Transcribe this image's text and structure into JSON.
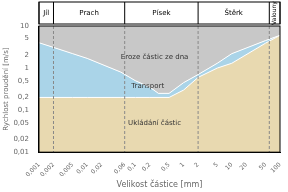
{
  "chart_data": {
    "type": "area",
    "log": true,
    "grid": false,
    "xlabel": "Velikost částice [mm]",
    "ylabel": "Rychlost proudění [m/s]",
    "xlim": [
      0.001,
      100
    ],
    "ylim": [
      0.01,
      10
    ],
    "xticks": [
      {
        "value": 0.001,
        "label": "0,001"
      },
      {
        "value": 0.002,
        "label": "0,002"
      },
      {
        "value": 0.005,
        "label": "0,005"
      },
      {
        "value": 0.01,
        "label": "0,01"
      },
      {
        "value": 0.02,
        "label": "0,02"
      },
      {
        "value": 0.06,
        "label": "0,06"
      },
      {
        "value": 0.1,
        "label": "0,1"
      },
      {
        "value": 0.2,
        "label": "0,2"
      },
      {
        "value": 0.5,
        "label": "0,5"
      },
      1,
      2,
      5,
      10,
      20,
      50,
      100
    ],
    "yticks": [
      {
        "value": 0.01,
        "label": "0,01"
      },
      {
        "value": 0.02,
        "label": "0,02"
      },
      {
        "value": 0.05,
        "label": "0,05"
      },
      {
        "value": 0.1,
        "label": "0,1"
      },
      {
        "value": 0.2,
        "label": "0,2"
      },
      {
        "value": 0.5,
        "label": "0,5"
      },
      1,
      2,
      5,
      10
    ],
    "curves": [
      {
        "x": [
          0.001,
          0.001999862,
          0.005000345,
          0.01,
          0.05000345,
          0.1,
          0.1999862,
          0.2999163,
          0.5000345,
          1,
          1.999862,
          5.000345,
          10,
          50.00345,
          100
        ],
        "values": [
          3.999447,
          3.097419,
          2.19786,
          1.698244,
          0.7998342,
          0.5000345,
          0.3499452,
          0.2500345,
          0.2500345,
          0.4497799,
          0.699842,
          1.30017,
          2.19786,
          4.497799,
          5.997911
        ]
      },
      {
        "x": [
          0.001,
          0.001999862,
          0.005000345,
          0.01,
          0.05000345,
          0.1,
          0.1999862,
          0.5000345,
          1,
          1.999862,
          5.000345,
          10,
          50.00345,
          100
        ],
        "values": [
          0.1999862,
          0.1999862,
          0.1999862,
          0.1999862,
          0.1999862,
          0.1999862,
          0.1999862,
          0.1999862,
          0.2999163,
          0.5997911,
          1,
          1.30017,
          3.89942,
          5.997911
        ]
      }
    ],
    "zones": [
      {
        "text": "Eroze částic ze dna",
        "color": "#c8c8c8",
        "x": 0.25,
        "y": 1.8
      },
      {
        "text": "Transport",
        "color": "#aad4e8",
        "x": 0.18,
        "y": 0.38
      },
      {
        "text": "Ukládání částic",
        "color": "#e8d9b0",
        "x": 0.25,
        "y": 0.05
      }
    ],
    "regions": {
      "labels": [
        "Jíl",
        "Prach",
        "Písek",
        "Štěrk",
        "Valouny"
      ],
      "boundaries": [
        0.002,
        0.06,
        2.0,
        60.0
      ],
      "color": "#888888"
    }
  }
}
